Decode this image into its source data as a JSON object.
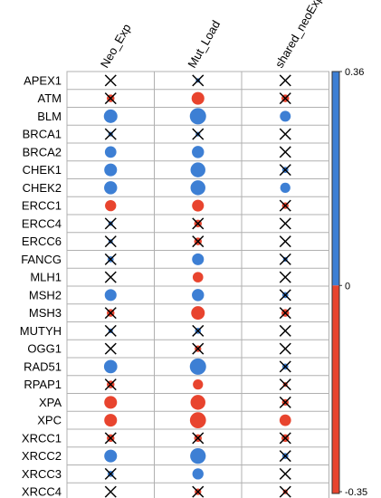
{
  "chart_data": {
    "type": "heatmap",
    "title": "",
    "columns": [
      "Neo_Exp",
      "Mut_Load",
      "shared_neoExp"
    ],
    "rows": [
      "APEX1",
      "ATM",
      "BLM",
      "BRCA1",
      "BRCA2",
      "CHEK1",
      "CHEK2",
      "ERCC1",
      "ERCC4",
      "ERCC6",
      "FANCG",
      "MLH1",
      "MSH2",
      "MSH3",
      "MUTYH",
      "OGG1",
      "RAD51",
      "RPAP1",
      "XPA",
      "XPC",
      "XRCC1",
      "XRCC2",
      "XRCC3",
      "XRCC4"
    ],
    "values": [
      [
        0.0,
        0.02,
        0.0
      ],
      [
        -0.08,
        -0.22,
        -0.08
      ],
      [
        0.25,
        0.36,
        0.16
      ],
      [
        0.03,
        0.03,
        0.0
      ],
      [
        0.18,
        0.2,
        0.0
      ],
      [
        0.22,
        0.3,
        0.05
      ],
      [
        0.23,
        0.3,
        0.14
      ],
      [
        -0.17,
        -0.19,
        -0.06
      ],
      [
        0.03,
        -0.08,
        0.0
      ],
      [
        0.02,
        -0.08,
        0.0
      ],
      [
        0.05,
        0.19,
        0.03
      ],
      [
        0.0,
        -0.15,
        0.0
      ],
      [
        0.19,
        0.2,
        0.05
      ],
      [
        -0.08,
        -0.25,
        -0.08
      ],
      [
        0.03,
        0.05,
        0.0
      ],
      [
        0.0,
        -0.06,
        0.0
      ],
      [
        0.24,
        0.36,
        0.05
      ],
      [
        -0.08,
        -0.14,
        -0.03
      ],
      [
        -0.22,
        -0.3,
        -0.06
      ],
      [
        -0.22,
        -0.35,
        -0.18
      ],
      [
        -0.08,
        -0.08,
        -0.08
      ],
      [
        0.22,
        0.33,
        0.05
      ],
      [
        0.05,
        0.17,
        0.0
      ],
      [
        0.0,
        -0.06,
        -0.03
      ]
    ],
    "significant": [
      [
        false,
        false,
        false
      ],
      [
        false,
        true,
        false
      ],
      [
        true,
        true,
        true
      ],
      [
        false,
        false,
        false
      ],
      [
        true,
        true,
        false
      ],
      [
        true,
        true,
        false
      ],
      [
        true,
        true,
        true
      ],
      [
        true,
        true,
        false
      ],
      [
        false,
        false,
        false
      ],
      [
        false,
        false,
        false
      ],
      [
        false,
        true,
        false
      ],
      [
        false,
        true,
        false
      ],
      [
        true,
        true,
        false
      ],
      [
        false,
        true,
        false
      ],
      [
        false,
        false,
        false
      ],
      [
        false,
        false,
        false
      ],
      [
        true,
        true,
        false
      ],
      [
        false,
        true,
        false
      ],
      [
        true,
        true,
        false
      ],
      [
        true,
        true,
        true
      ],
      [
        false,
        false,
        false
      ],
      [
        true,
        true,
        false
      ],
      [
        false,
        true,
        false
      ],
      [
        false,
        false,
        false
      ]
    ],
    "colorbar": {
      "min": -0.35,
      "max": 0.36,
      "ticks": [
        "0.36",
        "0",
        "-0.35"
      ],
      "positive_color": "#3d7fd4",
      "negative_color": "#e8442e"
    }
  }
}
